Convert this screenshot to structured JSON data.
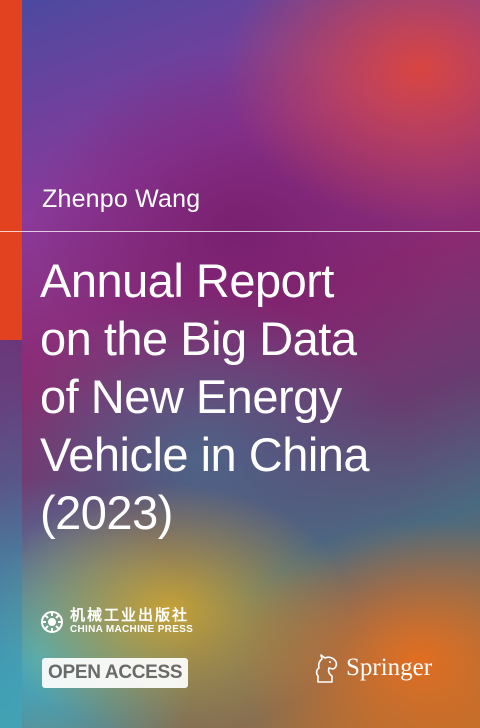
{
  "author": "Zhenpo Wang",
  "title_lines": [
    "Annual Report",
    "on the Big Data",
    "of New Energy",
    "Vehicle in China",
    "(2023)"
  ],
  "publisher": {
    "name_cn": "机械工业出版社",
    "name_en": "CHINA MACHINE PRESS",
    "icon": "publisher-logo-icon"
  },
  "badge": "OPEN ACCESS",
  "imprint": {
    "name": "Springer",
    "icon": "springer-horse-icon"
  },
  "colors": {
    "accent_bar": "#e2421f",
    "text": "#ffffff"
  }
}
